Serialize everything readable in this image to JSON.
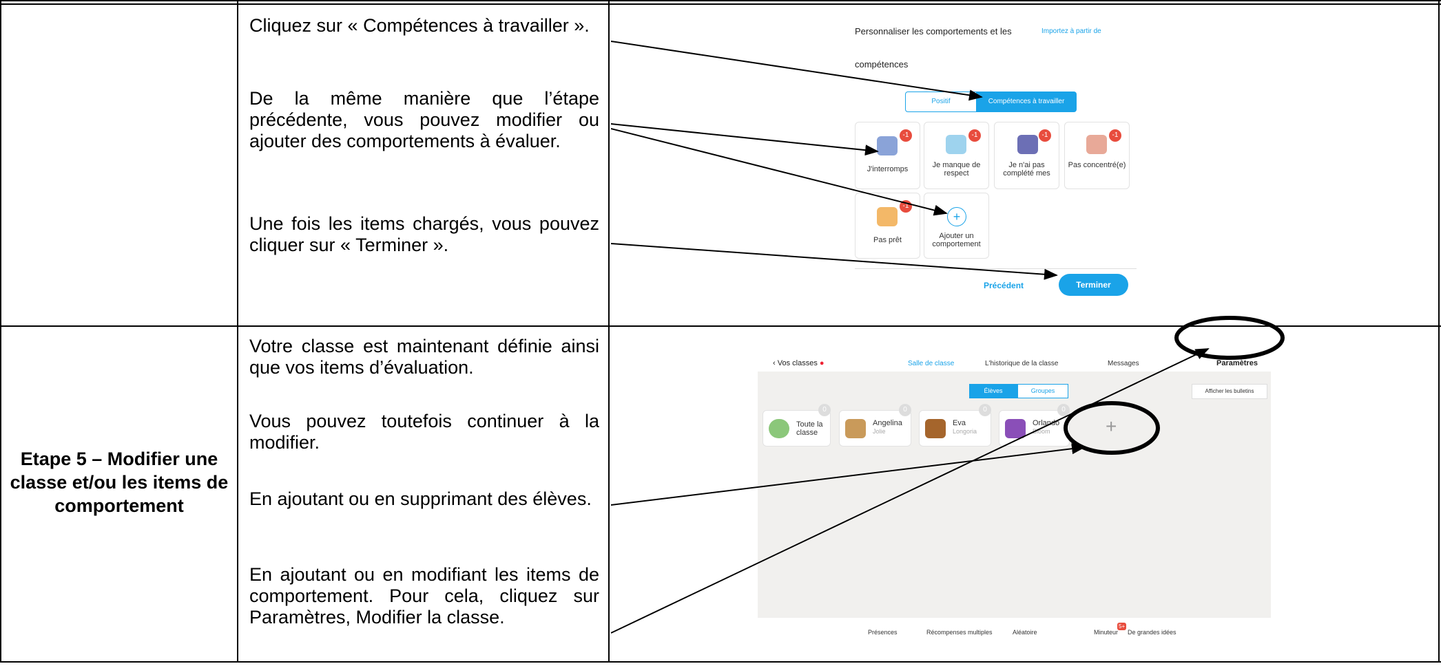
{
  "table": {
    "rows": [
      {
        "paragraphs": [
          "Cliquez sur « Compétences à travailler ».",
          "De la même manière que l’étape précédente, vous pouvez modifier ou ajouter des comportements à évaluer.",
          "Une fois les items chargés, vous pouvez cliquer sur « Terminer »."
        ],
        "screenshot": {
          "title": "Personnaliser les comportements et les",
          "title_cont": "compétences",
          "import": "Importez à partir de",
          "tabs": [
            "Positif",
            "Compétences à travailler"
          ],
          "items": [
            {
              "label": "J'interromps",
              "badge": "-1"
            },
            {
              "label": "Je manque de respect",
              "badge": "-1"
            },
            {
              "label": "Je n'ai pas complété mes",
              "badge": "-1"
            },
            {
              "label": "Pas concentré(e)",
              "badge": "-1"
            },
            {
              "label": "Pas prêt",
              "badge": "-1"
            }
          ],
          "add": "Ajouter un comportement",
          "previous": "Précédent",
          "finish": "Terminer"
        }
      },
      {
        "step": "Etape 5 – Modifier une classe et/ou les items de comportement",
        "paragraphs": [
          "Votre classe est maintenant définie ainsi que vos items d’évaluation.",
          "Vous pouvez toutefois continuer à la modifier.",
          "En ajoutant ou en supprimant des élèves.",
          "En ajoutant ou en modifiant les items de comportement. Pour cela, cliquez sur Paramètres, Modifier la classe."
        ],
        "screenshot": {
          "back": "Vos classes",
          "nav": [
            "Salle de classe",
            "L'historique de la classe",
            "Messages"
          ],
          "settings": "Paramètres",
          "tabs": [
            "Élèves",
            "Groupes"
          ],
          "reports": "Afficher les bulletins",
          "students": [
            {
              "name": "Toute la classe",
              "points": "0"
            },
            {
              "name": "Angelina",
              "sub": "Jolie",
              "points": "0"
            },
            {
              "name": "Eva",
              "sub": "Longoria",
              "points": "0"
            },
            {
              "name": "Orlando",
              "sub": "Bloom",
              "points": "0"
            }
          ],
          "toolbar": [
            "Présences",
            "Récompenses multiples",
            "Aléatoire",
            "Minuteur",
            "De grandes idées"
          ],
          "badge": "5+"
        }
      }
    ]
  }
}
